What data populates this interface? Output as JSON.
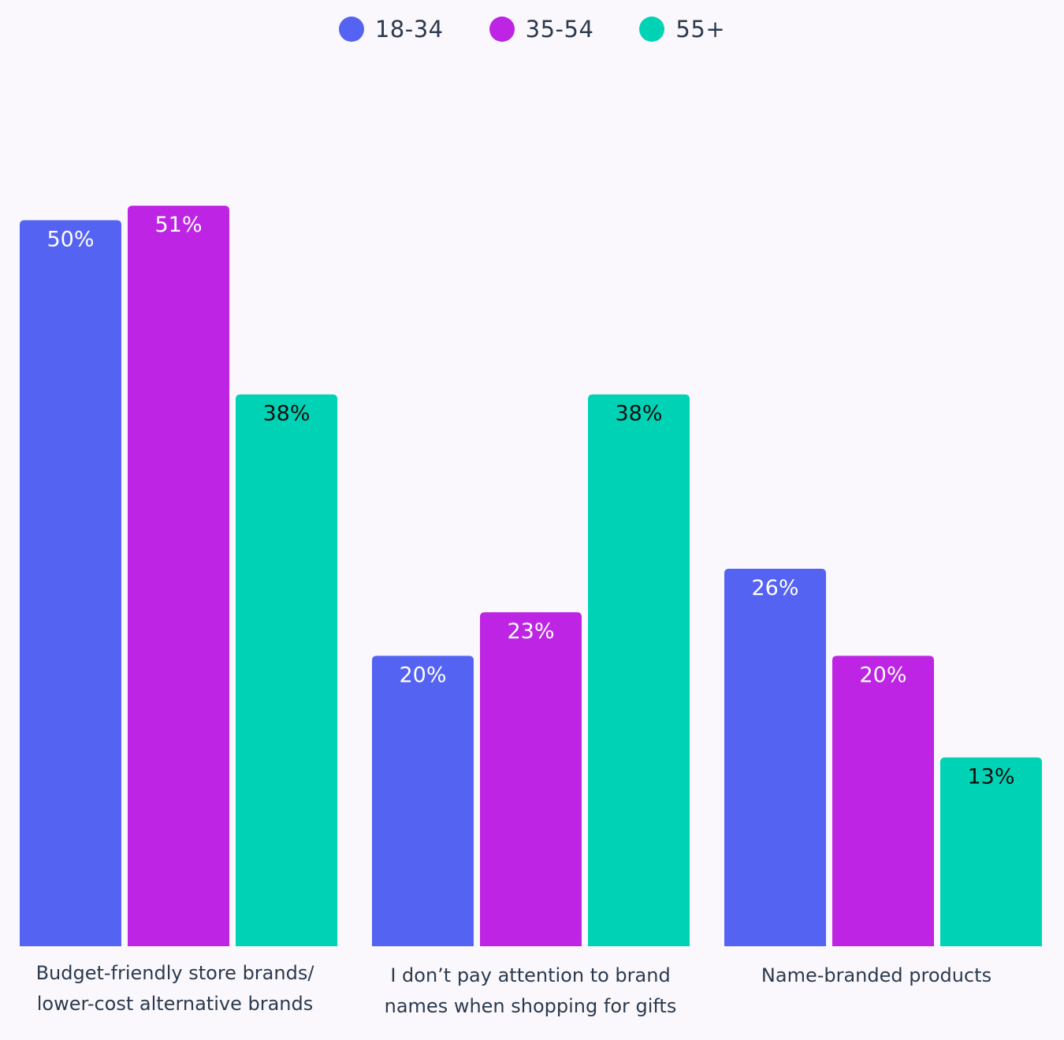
{
  "chart_data": {
    "type": "bar",
    "categories": [
      "Budget-friendly store brands/ lower-cost alternative brands",
      "I don’t pay attention to brand names when shopping for gifts",
      "Name-branded products"
    ],
    "category_lines": [
      [
        "Budget-friendly store brands/",
        "lower-cost alternative brands"
      ],
      [
        "I don’t pay attention to brand",
        "names when shopping for gifts"
      ],
      [
        "Name-branded products"
      ]
    ],
    "series": [
      {
        "name": "18-34",
        "color": "#5563f2",
        "label_color": "#ffffff",
        "values": [
          50,
          20,
          26
        ],
        "labels": [
          "50%",
          "20%",
          "26%"
        ]
      },
      {
        "name": "35-54",
        "color": "#bd24e3",
        "label_color": "#ffffff",
        "values": [
          51,
          23,
          20
        ],
        "labels": [
          "51%",
          "23%",
          "20%"
        ]
      },
      {
        "name": "55+",
        "color": "#00d3b5",
        "label_color": "#0d0d0d",
        "values": [
          38,
          38,
          13
        ],
        "labels": [
          "38%",
          "38%",
          "13%"
        ]
      }
    ],
    "ylim": [
      0,
      51
    ],
    "legend_position": "top-center",
    "grid": false
  }
}
